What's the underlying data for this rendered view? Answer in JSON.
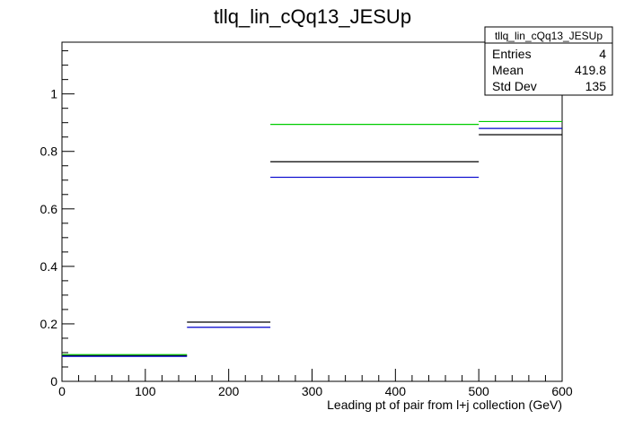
{
  "chart_data": {
    "type": "step",
    "title": "tllq_lin_cQq13_JESUp",
    "xlabel": "Leading pt of pair from l+j collection (GeV)",
    "ylabel": "",
    "xlim": [
      0,
      600
    ],
    "ylim": [
      0,
      1.18
    ],
    "x_ticks": [
      0,
      100,
      200,
      300,
      400,
      500,
      600
    ],
    "y_ticks": [
      0,
      0.2,
      0.4,
      0.6,
      0.8,
      1
    ],
    "x_tick_labels": [
      "0",
      "100",
      "200",
      "300",
      "400",
      "500",
      "600"
    ],
    "y_tick_labels": [
      "0",
      "0.2",
      "0.4",
      "0.6",
      "0.8",
      "1"
    ],
    "bin_edges": [
      0,
      150,
      250,
      500,
      600
    ],
    "series": [
      {
        "color": "#000000",
        "values": [
          0.09,
          0.206,
          0.764,
          0.858
        ]
      },
      {
        "color": "#0000cc",
        "values": [
          0.087,
          0.188,
          0.71,
          0.88
        ]
      },
      {
        "color": "#00cc00",
        "values": [
          0.093,
          0.0,
          0.894,
          0.904
        ]
      }
    ],
    "stats_box": {
      "title": "tllq_lin_cQq13_JESUp",
      "rows": [
        {
          "label": "Entries",
          "value": "4"
        },
        {
          "label": "Mean",
          "value": "419.8"
        },
        {
          "label": "Std Dev",
          "value": "135"
        }
      ]
    }
  }
}
